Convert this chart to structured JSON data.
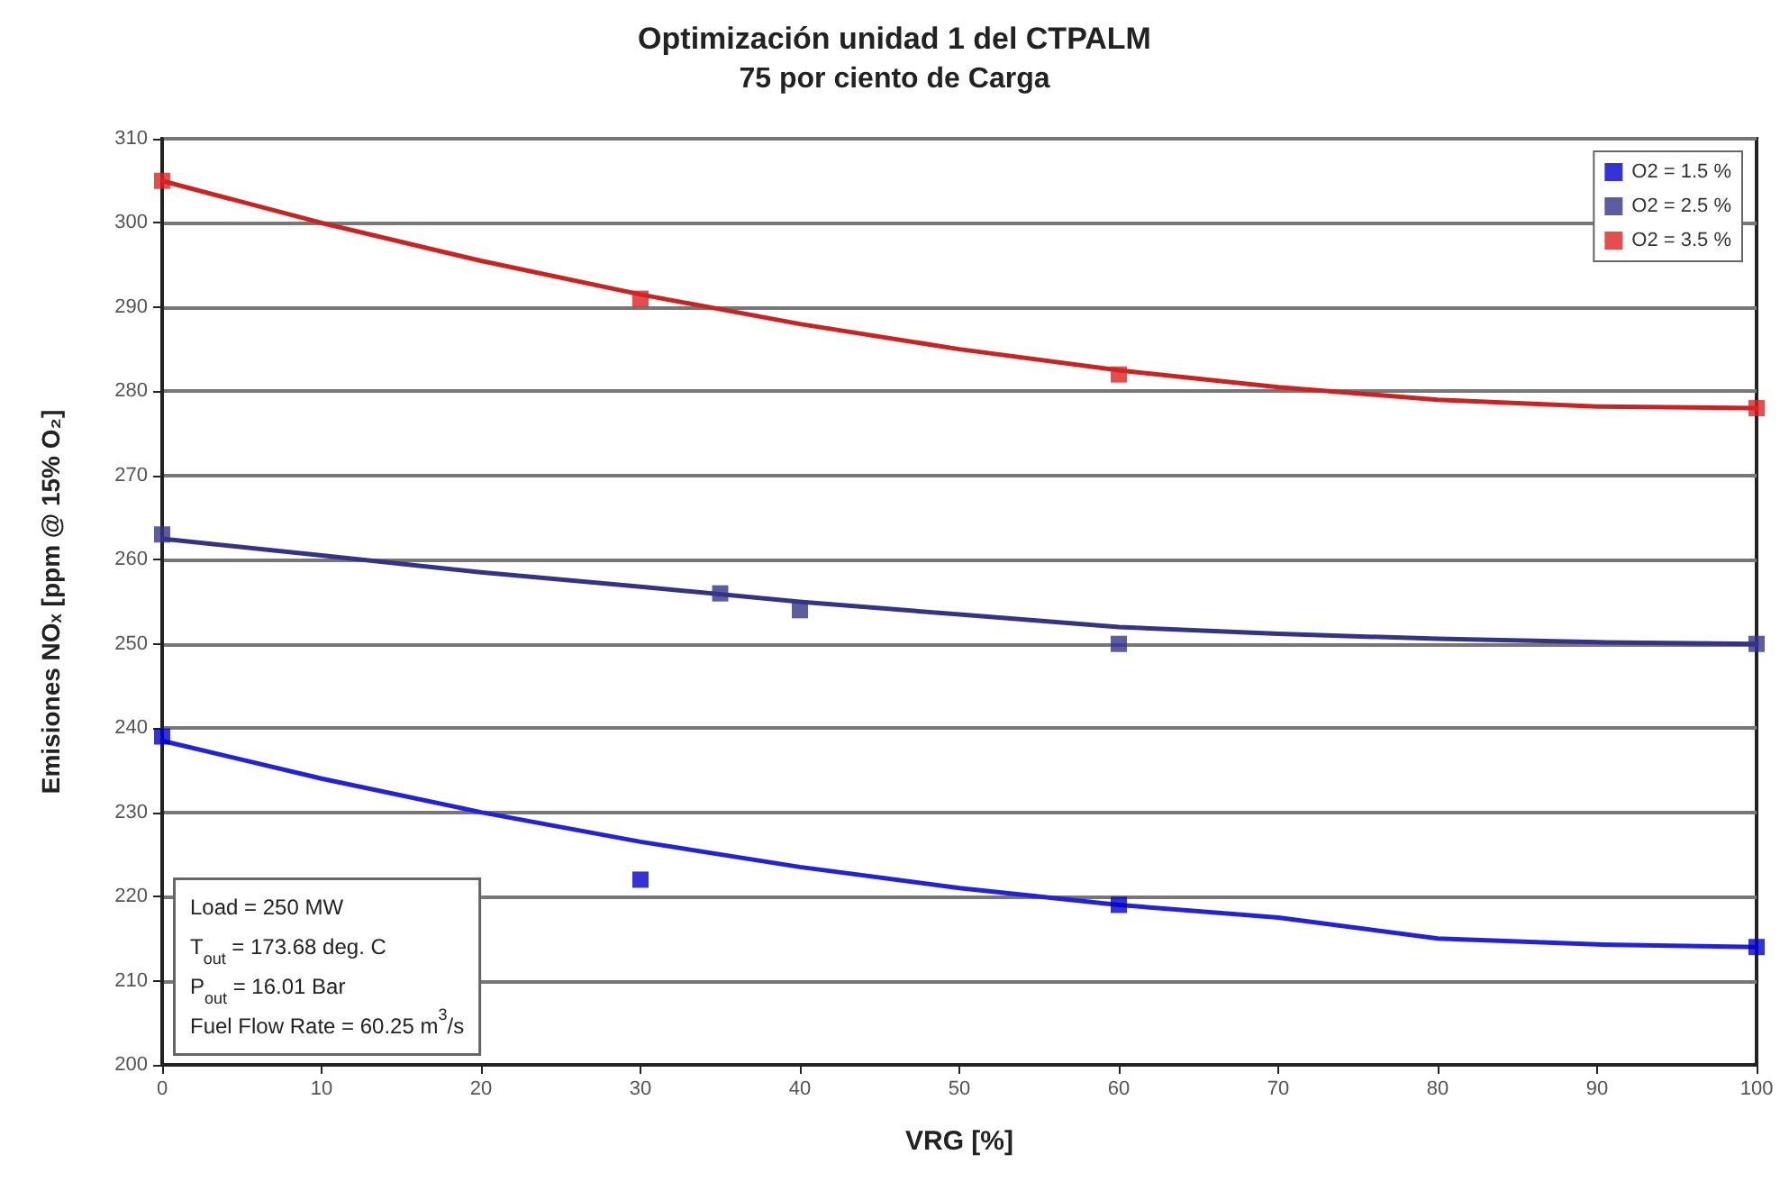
{
  "chart_data": {
    "type": "scatter",
    "title": "Optimización unidad 1 del CTPALM",
    "subtitle": "75 por ciento de Carga",
    "xlabel": "VRG [%]",
    "ylabel": "Emisiones NOₓ [ppm @ 15% O₂]",
    "xlim": [
      0,
      100
    ],
    "xticks": [
      0,
      10,
      20,
      30,
      40,
      50,
      60,
      70,
      80,
      90,
      100
    ],
    "ylim": [
      200,
      310
    ],
    "yticks": [
      200,
      210,
      220,
      230,
      240,
      250,
      260,
      270,
      280,
      290,
      300,
      310
    ],
    "grid": "y",
    "legend": "top right",
    "series": [
      {
        "name": "O2 = 1.5 %",
        "marker": "square",
        "color": "#0000cc",
        "x": [
          0,
          30,
          60,
          100
        ],
        "values": [
          239,
          222,
          219,
          214
        ]
      },
      {
        "name": "O2 = 2.5 %",
        "marker": "square",
        "color": "#333388",
        "x": [
          0,
          35,
          40,
          60,
          100
        ],
        "values": [
          263,
          256,
          254,
          250,
          250
        ]
      },
      {
        "name": "O2 = 3.5 %",
        "marker": "square",
        "color": "#dd2222",
        "x": [
          0,
          30,
          60,
          100
        ],
        "values": [
          305,
          291,
          282,
          278
        ]
      },
      {
        "type": "line",
        "marker": "none",
        "color": "#2222dd",
        "x": [
          0,
          10,
          20,
          30,
          40,
          50,
          60,
          70,
          80,
          90,
          100
        ],
        "values": [
          238.5,
          234,
          230,
          226.5,
          223.5,
          221,
          219,
          217.5,
          215,
          214.3,
          214
        ]
      },
      {
        "type": "line",
        "marker": "none",
        "color": "#333388",
        "x": [
          0,
          10,
          20,
          30,
          40,
          50,
          60,
          70,
          80,
          90,
          100
        ],
        "values": [
          262.5,
          260.5,
          258.5,
          256.8,
          255,
          253.5,
          252,
          251.2,
          250.6,
          250.2,
          250
        ]
      },
      {
        "type": "line",
        "marker": "none",
        "color": "#cc2222",
        "x": [
          0,
          10,
          20,
          30,
          40,
          50,
          60,
          70,
          80,
          90,
          100
        ],
        "values": [
          305,
          300,
          295.5,
          291.5,
          288,
          285,
          282.5,
          280.5,
          279,
          278.2,
          278
        ]
      }
    ],
    "annotations": [
      "Load = 250 MW",
      "T$_{out}$ = 173.68 deg. C",
      "P$_{out}$ = 16.01 Bar",
      "Fuel Flow Rate = 60.25 m$^{3}$/s"
    ]
  }
}
